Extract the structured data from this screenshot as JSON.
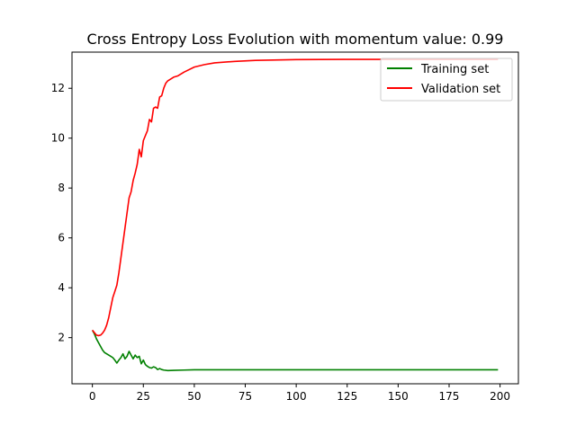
{
  "chart_data": {
    "type": "line",
    "title": "Cross Entropy Loss Evolution with momentum value: 0.99",
    "xlabel": "",
    "ylabel": "",
    "xlim": [
      -10,
      209
    ],
    "ylim": [
      0.15,
      13.45
    ],
    "x_ticks": [
      0,
      25,
      50,
      75,
      100,
      125,
      150,
      175,
      200
    ],
    "y_ticks": [
      2,
      4,
      6,
      8,
      10,
      12
    ],
    "grid": false,
    "legend_position": "top-right",
    "series": [
      {
        "name": "Training set",
        "color": "#008000",
        "points": [
          [
            0,
            2.3
          ],
          [
            1,
            2.15
          ],
          [
            2,
            1.95
          ],
          [
            3,
            1.8
          ],
          [
            4,
            1.65
          ],
          [
            5,
            1.5
          ],
          [
            6,
            1.4
          ],
          [
            7,
            1.35
          ],
          [
            8,
            1.3
          ],
          [
            9,
            1.25
          ],
          [
            10,
            1.2
          ],
          [
            11,
            1.1
          ],
          [
            12,
            0.98
          ],
          [
            13,
            1.1
          ],
          [
            14,
            1.2
          ],
          [
            15,
            1.35
          ],
          [
            16,
            1.15
          ],
          [
            17,
            1.25
          ],
          [
            18,
            1.45
          ],
          [
            19,
            1.3
          ],
          [
            20,
            1.15
          ],
          [
            21,
            1.3
          ],
          [
            22,
            1.2
          ],
          [
            23,
            1.25
          ],
          [
            24,
            0.95
          ],
          [
            25,
            1.1
          ],
          [
            26,
            0.92
          ],
          [
            27,
            0.85
          ],
          [
            28,
            0.8
          ],
          [
            29,
            0.78
          ],
          [
            30,
            0.83
          ],
          [
            31,
            0.8
          ],
          [
            32,
            0.72
          ],
          [
            33,
            0.76
          ],
          [
            34,
            0.72
          ],
          [
            35,
            0.7
          ],
          [
            37,
            0.68
          ],
          [
            40,
            0.69
          ],
          [
            45,
            0.7
          ],
          [
            50,
            0.71
          ],
          [
            60,
            0.71
          ],
          [
            80,
            0.71
          ],
          [
            100,
            0.71
          ],
          [
            125,
            0.71
          ],
          [
            150,
            0.71
          ],
          [
            175,
            0.71
          ],
          [
            199,
            0.71
          ]
        ]
      },
      {
        "name": "Validation set",
        "color": "#ff0000",
        "points": [
          [
            0,
            2.3
          ],
          [
            1,
            2.2
          ],
          [
            2,
            2.1
          ],
          [
            3,
            2.08
          ],
          [
            4,
            2.1
          ],
          [
            5,
            2.18
          ],
          [
            6,
            2.3
          ],
          [
            7,
            2.5
          ],
          [
            8,
            2.8
          ],
          [
            9,
            3.2
          ],
          [
            10,
            3.6
          ],
          [
            11,
            3.85
          ],
          [
            12,
            4.1
          ],
          [
            13,
            4.6
          ],
          [
            14,
            5.2
          ],
          [
            15,
            5.8
          ],
          [
            16,
            6.4
          ],
          [
            17,
            7.0
          ],
          [
            18,
            7.6
          ],
          [
            19,
            7.85
          ],
          [
            20,
            8.3
          ],
          [
            21,
            8.6
          ],
          [
            22,
            8.95
          ],
          [
            23,
            9.55
          ],
          [
            24,
            9.25
          ],
          [
            25,
            9.9
          ],
          [
            26,
            10.1
          ],
          [
            27,
            10.3
          ],
          [
            28,
            10.75
          ],
          [
            29,
            10.65
          ],
          [
            30,
            11.2
          ],
          [
            31,
            11.25
          ],
          [
            32,
            11.2
          ],
          [
            33,
            11.65
          ],
          [
            34,
            11.7
          ],
          [
            35,
            12.0
          ],
          [
            36,
            12.2
          ],
          [
            37,
            12.3
          ],
          [
            38,
            12.35
          ],
          [
            40,
            12.45
          ],
          [
            42,
            12.5
          ],
          [
            45,
            12.65
          ],
          [
            50,
            12.85
          ],
          [
            55,
            12.95
          ],
          [
            60,
            13.02
          ],
          [
            70,
            13.08
          ],
          [
            80,
            13.12
          ],
          [
            100,
            13.15
          ],
          [
            125,
            13.16
          ],
          [
            150,
            13.16
          ],
          [
            175,
            13.16
          ],
          [
            199,
            13.16
          ]
        ]
      }
    ]
  }
}
